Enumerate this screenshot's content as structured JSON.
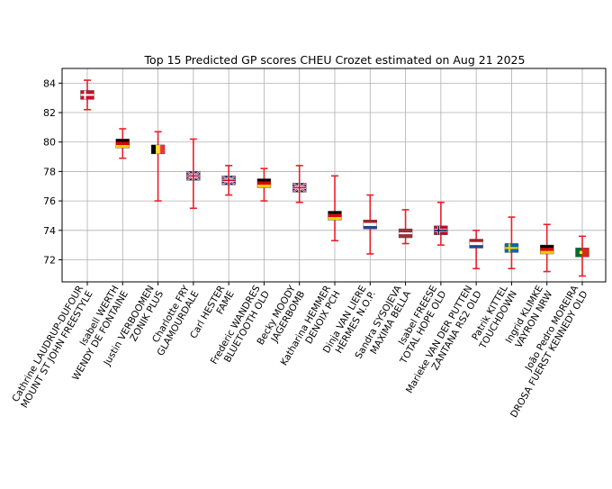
{
  "chart_data": {
    "type": "errorbar",
    "title": "Top 15 Predicted GP scores CHEU Crozet estimated on Aug 21 2025",
    "xlabel": "",
    "ylabel": "",
    "ylim": [
      70.5,
      85.0
    ],
    "yticks": [
      72,
      74,
      76,
      78,
      80,
      82,
      84
    ],
    "grid": true,
    "error_color": "#e8202a",
    "categories": [
      [
        "Cathrine LAUDRUP-DUFOUR",
        "MOUNT ST JOHN FREESTYLE"
      ],
      [
        "Isabell WERTH",
        "WENDY DE FONTAINE"
      ],
      [
        "Justin VERBOOMEN",
        "ZONIK PLUS"
      ],
      [
        "Charlotte FRY",
        "GLAMOURDALE"
      ],
      [
        "Carl HESTER",
        "FAME"
      ],
      [
        "Frederic WANDRES",
        "BLUETOOTH OLD"
      ],
      [
        "Becky MOODY",
        "JAGERBOMB"
      ],
      [
        "Katharina HEMMER",
        "DENOIX PCH"
      ],
      [
        "Dinja VAN LIERE",
        "HERMES N.O.P."
      ],
      [
        "Sandra SYSOJEVA",
        "MAXIMA BELLA"
      ],
      [
        "Isabel FREESE",
        "TOTAL HOPE OLD"
      ],
      [
        "Marieke VAN DER PUTTEN",
        "ZANTANA RS2 OLD"
      ],
      [
        "Patrik KITTEL",
        "TOUCHDOWN"
      ],
      [
        "Ingrid KLIMKE",
        "VAYRON NRW"
      ],
      [
        "João Pedro MOREIRA",
        "DROSA FUERST KENNEDY OLD"
      ]
    ],
    "values": [
      83.2,
      79.9,
      79.5,
      77.7,
      77.4,
      77.2,
      76.9,
      75.0,
      74.4,
      73.8,
      74.0,
      73.1,
      72.8,
      72.7,
      72.5
    ],
    "lower": [
      82.2,
      78.9,
      76.0,
      75.5,
      76.4,
      76.0,
      75.9,
      73.3,
      72.4,
      73.1,
      73.0,
      71.4,
      71.4,
      71.2,
      70.9
    ],
    "upper": [
      84.2,
      80.9,
      80.7,
      80.2,
      78.4,
      78.2,
      78.4,
      77.7,
      76.4,
      75.4,
      75.9,
      74.0,
      74.9,
      74.4,
      73.6
    ],
    "flags": [
      "DEN",
      "GER",
      "BEL",
      "GBR",
      "GBR",
      "GER",
      "GBR",
      "GER",
      "NED",
      "LAT",
      "NOR",
      "NED",
      "SWE",
      "GER",
      "POR"
    ]
  }
}
